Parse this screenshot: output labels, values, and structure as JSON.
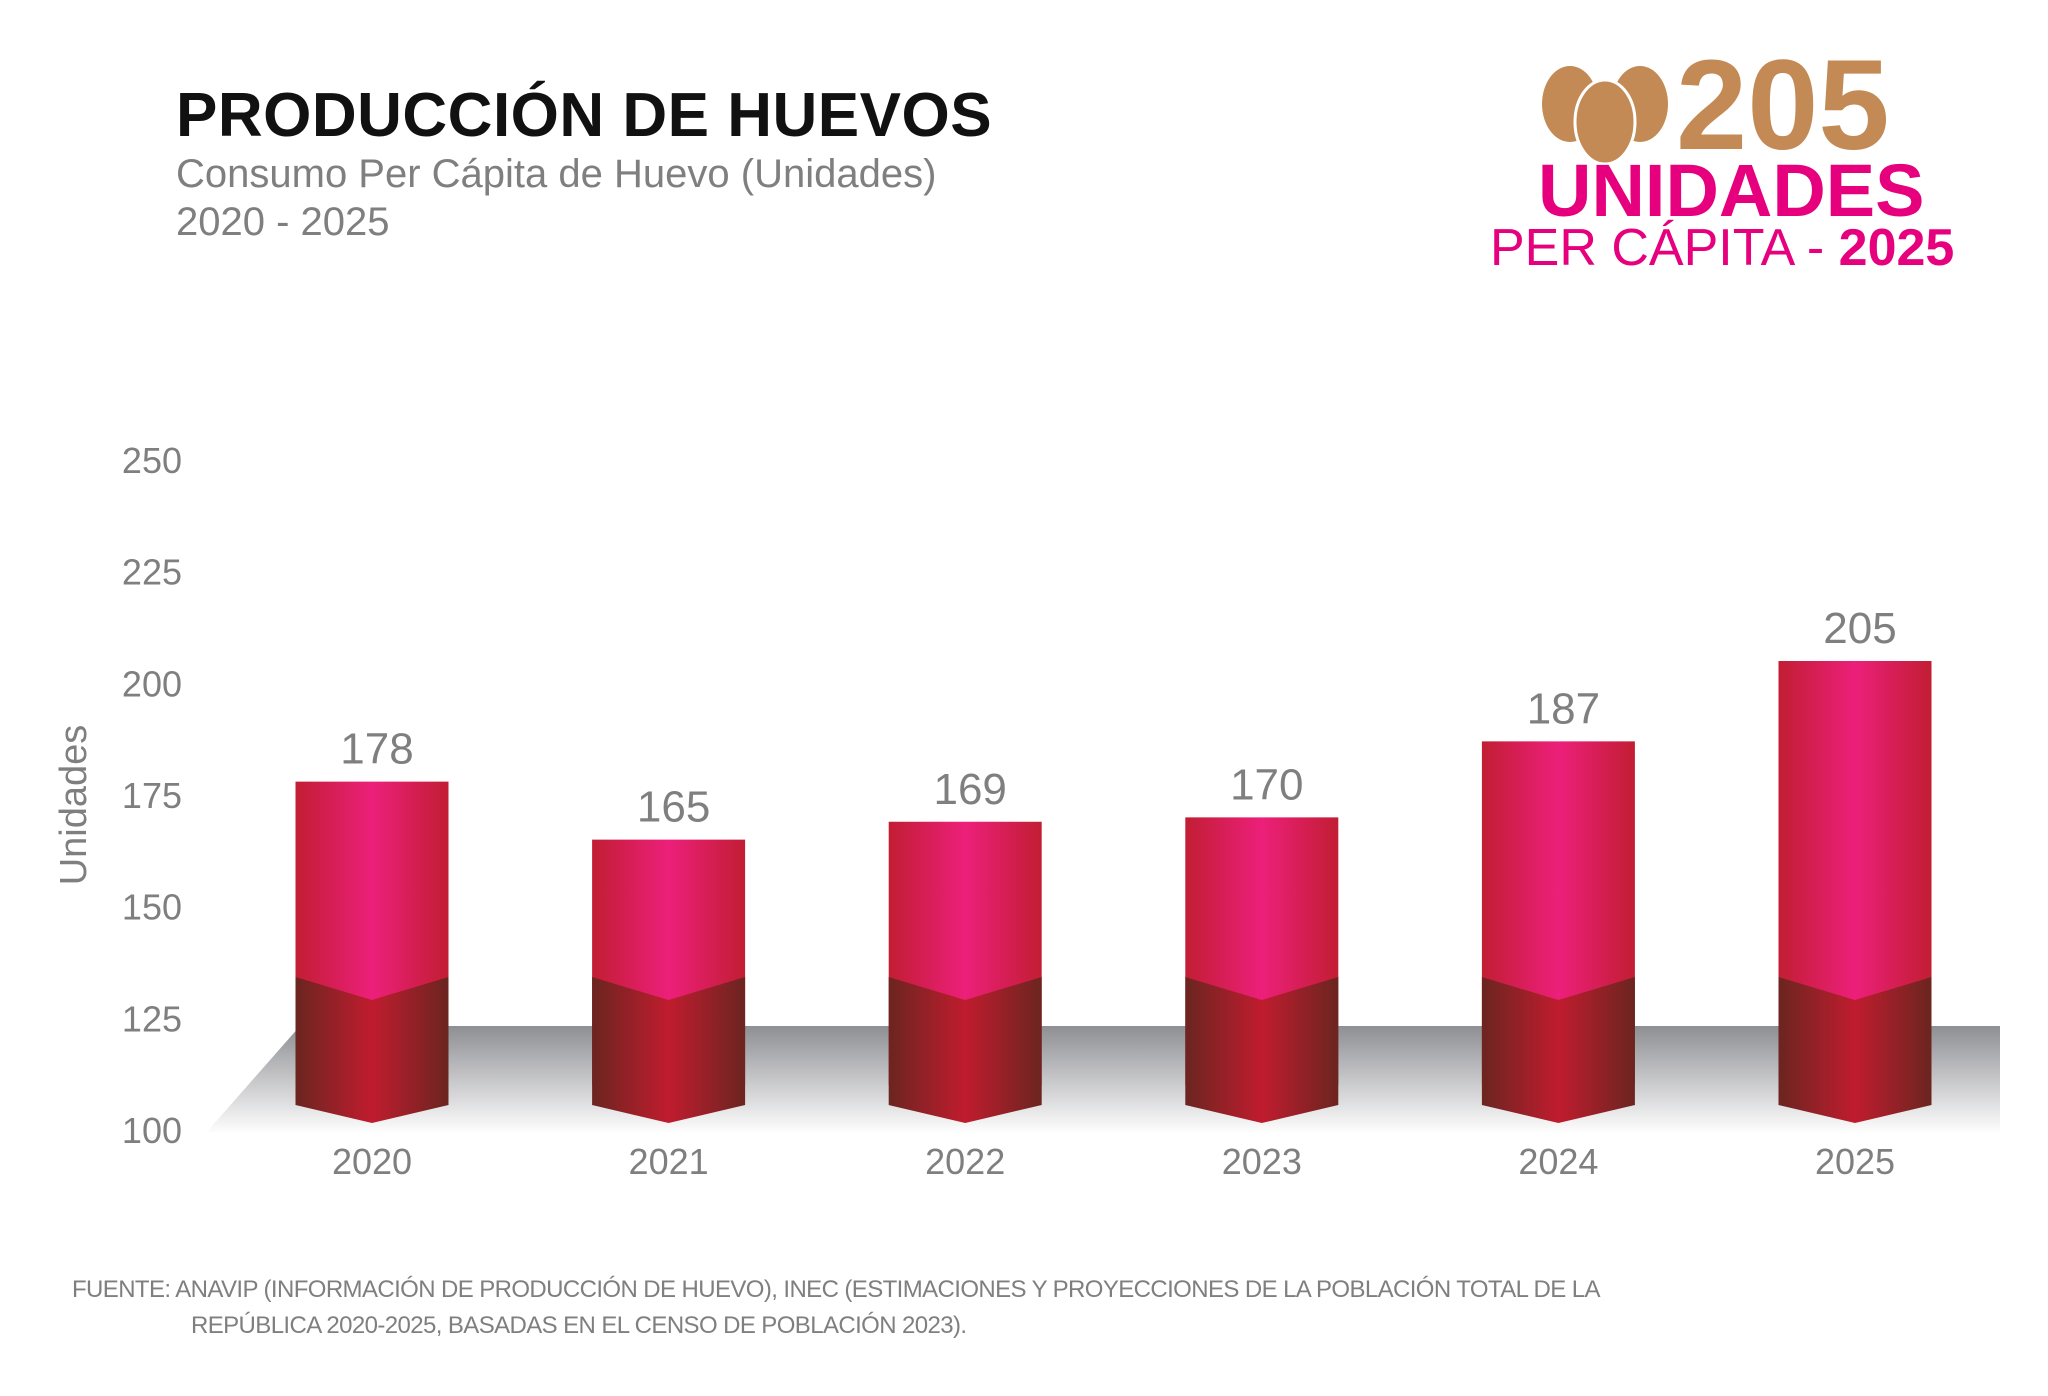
{
  "header": {
    "title": "PRODUCCIÓN DE HUEVOS",
    "subtitle": "Consumo Per Cápita de Huevo (Unidades)",
    "range": "2020 - 2025"
  },
  "badge": {
    "icon": "eggs-icon",
    "value": "205",
    "unit": "UNIDADES",
    "per_capita": "PER CÁPITA -",
    "year": "2025",
    "colors": {
      "value": "#c48a55",
      "text": "#e6007e"
    }
  },
  "chart_data": {
    "type": "bar",
    "title": "",
    "xlabel": "",
    "ylabel": "Unidades",
    "categories": [
      "2020",
      "2021",
      "2022",
      "2023",
      "2024",
      "2025"
    ],
    "values": [
      178,
      165,
      169,
      170,
      187,
      205
    ],
    "ylim": [
      100,
      250
    ],
    "yticks": [
      "250",
      "225",
      "200",
      "175",
      "150",
      "125",
      "100"
    ],
    "grid": false,
    "style": "3d-bars",
    "colors": {
      "bar": "#e91e78",
      "bar_edge": "#c21e33",
      "bar_base": "#6b2520",
      "floor": "#9a9a9e"
    }
  },
  "footer": {
    "line1": "FUENTE:  ANAVIP (INFORMACIÓN DE PRODUCCIÓN DE HUEVO), INEC (ESTIMACIONES Y PROYECCIONES DE LA POBLACIÓN TOTAL DE LA",
    "line2": "REPÚBLICA 2020-2025, BASADAS EN EL CENSO DE POBLACIÓN 2023)."
  }
}
